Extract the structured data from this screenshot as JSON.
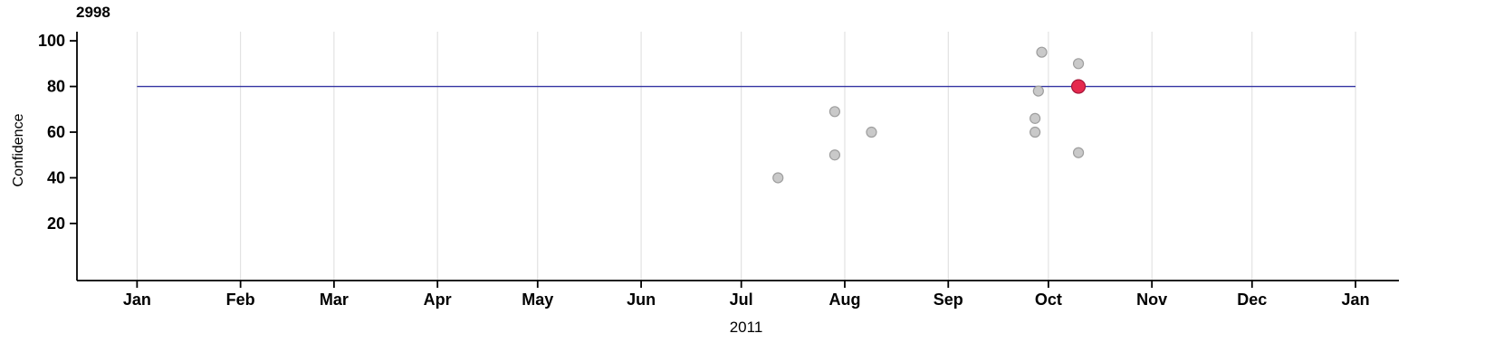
{
  "chart_data": {
    "type": "scatter",
    "title": "2998",
    "xlabel": "2011",
    "ylabel": "Confidence",
    "x_axis": {
      "unit": "day of year 2011",
      "lim": [
        -18,
        378
      ],
      "grid": true,
      "ticks": [
        {
          "day": 0,
          "label": "Jan"
        },
        {
          "day": 31,
          "label": "Feb"
        },
        {
          "day": 59,
          "label": "Mar"
        },
        {
          "day": 90,
          "label": "Apr"
        },
        {
          "day": 120,
          "label": "May"
        },
        {
          "day": 151,
          "label": "Jun"
        },
        {
          "day": 181,
          "label": "Jul"
        },
        {
          "day": 212,
          "label": "Aug"
        },
        {
          "day": 243,
          "label": "Sep"
        },
        {
          "day": 273,
          "label": "Oct"
        },
        {
          "day": 304,
          "label": "Nov"
        },
        {
          "day": 334,
          "label": "Dec"
        },
        {
          "day": 365,
          "label": "Jan"
        }
      ]
    },
    "y_axis": {
      "lim": [
        -5,
        104
      ],
      "grid": false,
      "ticks": [
        20,
        40,
        60,
        80,
        100
      ]
    },
    "reference_line": {
      "y": 80,
      "from_day": 0,
      "to_day": 365,
      "color": "#3535a2"
    },
    "series": [
      {
        "name": "observations",
        "marker": "circle",
        "color": "#c9c9c9",
        "stroke": "#9e9e9e",
        "points": [
          {
            "day": 192,
            "confidence": 40
          },
          {
            "day": 209,
            "confidence": 69
          },
          {
            "day": 209,
            "confidence": 50
          },
          {
            "day": 220,
            "confidence": 60
          },
          {
            "day": 271,
            "confidence": 95
          },
          {
            "day": 270,
            "confidence": 78
          },
          {
            "day": 269,
            "confidence": 66
          },
          {
            "day": 269,
            "confidence": 60
          },
          {
            "day": 282,
            "confidence": 90
          },
          {
            "day": 282,
            "confidence": 51
          }
        ]
      },
      {
        "name": "highlighted",
        "marker": "circle",
        "color": "#e5294e",
        "stroke": "#a31638",
        "points": [
          {
            "day": 282,
            "confidence": 80
          }
        ]
      }
    ],
    "legend": "none"
  },
  "colors": {
    "axis": "#000000",
    "grid": "#dcdcdc",
    "tick_label": "#000000",
    "background": "#ffffff"
  }
}
